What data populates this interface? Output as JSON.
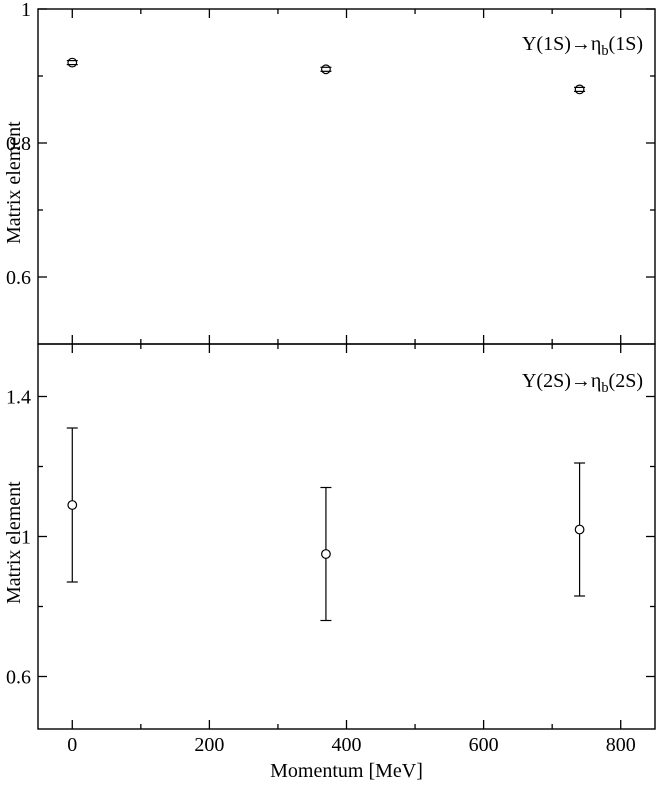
{
  "chart_data": [
    {
      "type": "scatter",
      "panel": "top",
      "marker": "open-circle",
      "color": "#000000",
      "annotation": {
        "pre": "Y(1S)→η",
        "sub": "b",
        "post": "(1S)"
      },
      "ylabel": "Matrix element",
      "x": [
        0,
        370,
        740
      ],
      "y": [
        0.92,
        0.91,
        0.88
      ],
      "yerr": [
        0.003,
        0.003,
        0.003
      ],
      "xlim": [
        -50,
        850
      ],
      "ylim": [
        0.5,
        1.0
      ],
      "grid": false,
      "legend": "none",
      "xticks": {
        "major": [
          0,
          200,
          400,
          600,
          800
        ],
        "minor": [
          100,
          300,
          500,
          700
        ],
        "labels": [
          "0",
          "200",
          "400",
          "600",
          "800"
        ]
      },
      "yticks": {
        "major": [
          0.6,
          0.8,
          1.0
        ],
        "minor": [
          0.7,
          0.9
        ],
        "labels": [
          "0.6",
          "0.8",
          "1"
        ]
      },
      "show_x_labels": false
    },
    {
      "type": "scatter",
      "panel": "bottom",
      "marker": "open-circle",
      "color": "#000000",
      "annotation": {
        "pre": "Y(2S)→η",
        "sub": "b",
        "post": "(2S)"
      },
      "ylabel": "Matrix element",
      "xlabel": "Momentum [MeV]",
      "x": [
        0,
        370,
        740
      ],
      "y": [
        1.09,
        0.95,
        1.02
      ],
      "yerr": [
        0.22,
        0.19,
        0.19
      ],
      "xlim": [
        -50,
        850
      ],
      "ylim": [
        0.45,
        1.55
      ],
      "grid": false,
      "legend": "none",
      "xticks": {
        "major": [
          0,
          200,
          400,
          600,
          800
        ],
        "minor": [
          100,
          300,
          500,
          700
        ],
        "labels": [
          "0",
          "200",
          "400",
          "600",
          "800"
        ]
      },
      "yticks": {
        "major": [
          0.6,
          1.0,
          1.4
        ],
        "minor": [
          0.8,
          1.2
        ],
        "labels": [
          "0.6",
          "1",
          "1.4"
        ]
      },
      "show_x_labels": true
    }
  ]
}
